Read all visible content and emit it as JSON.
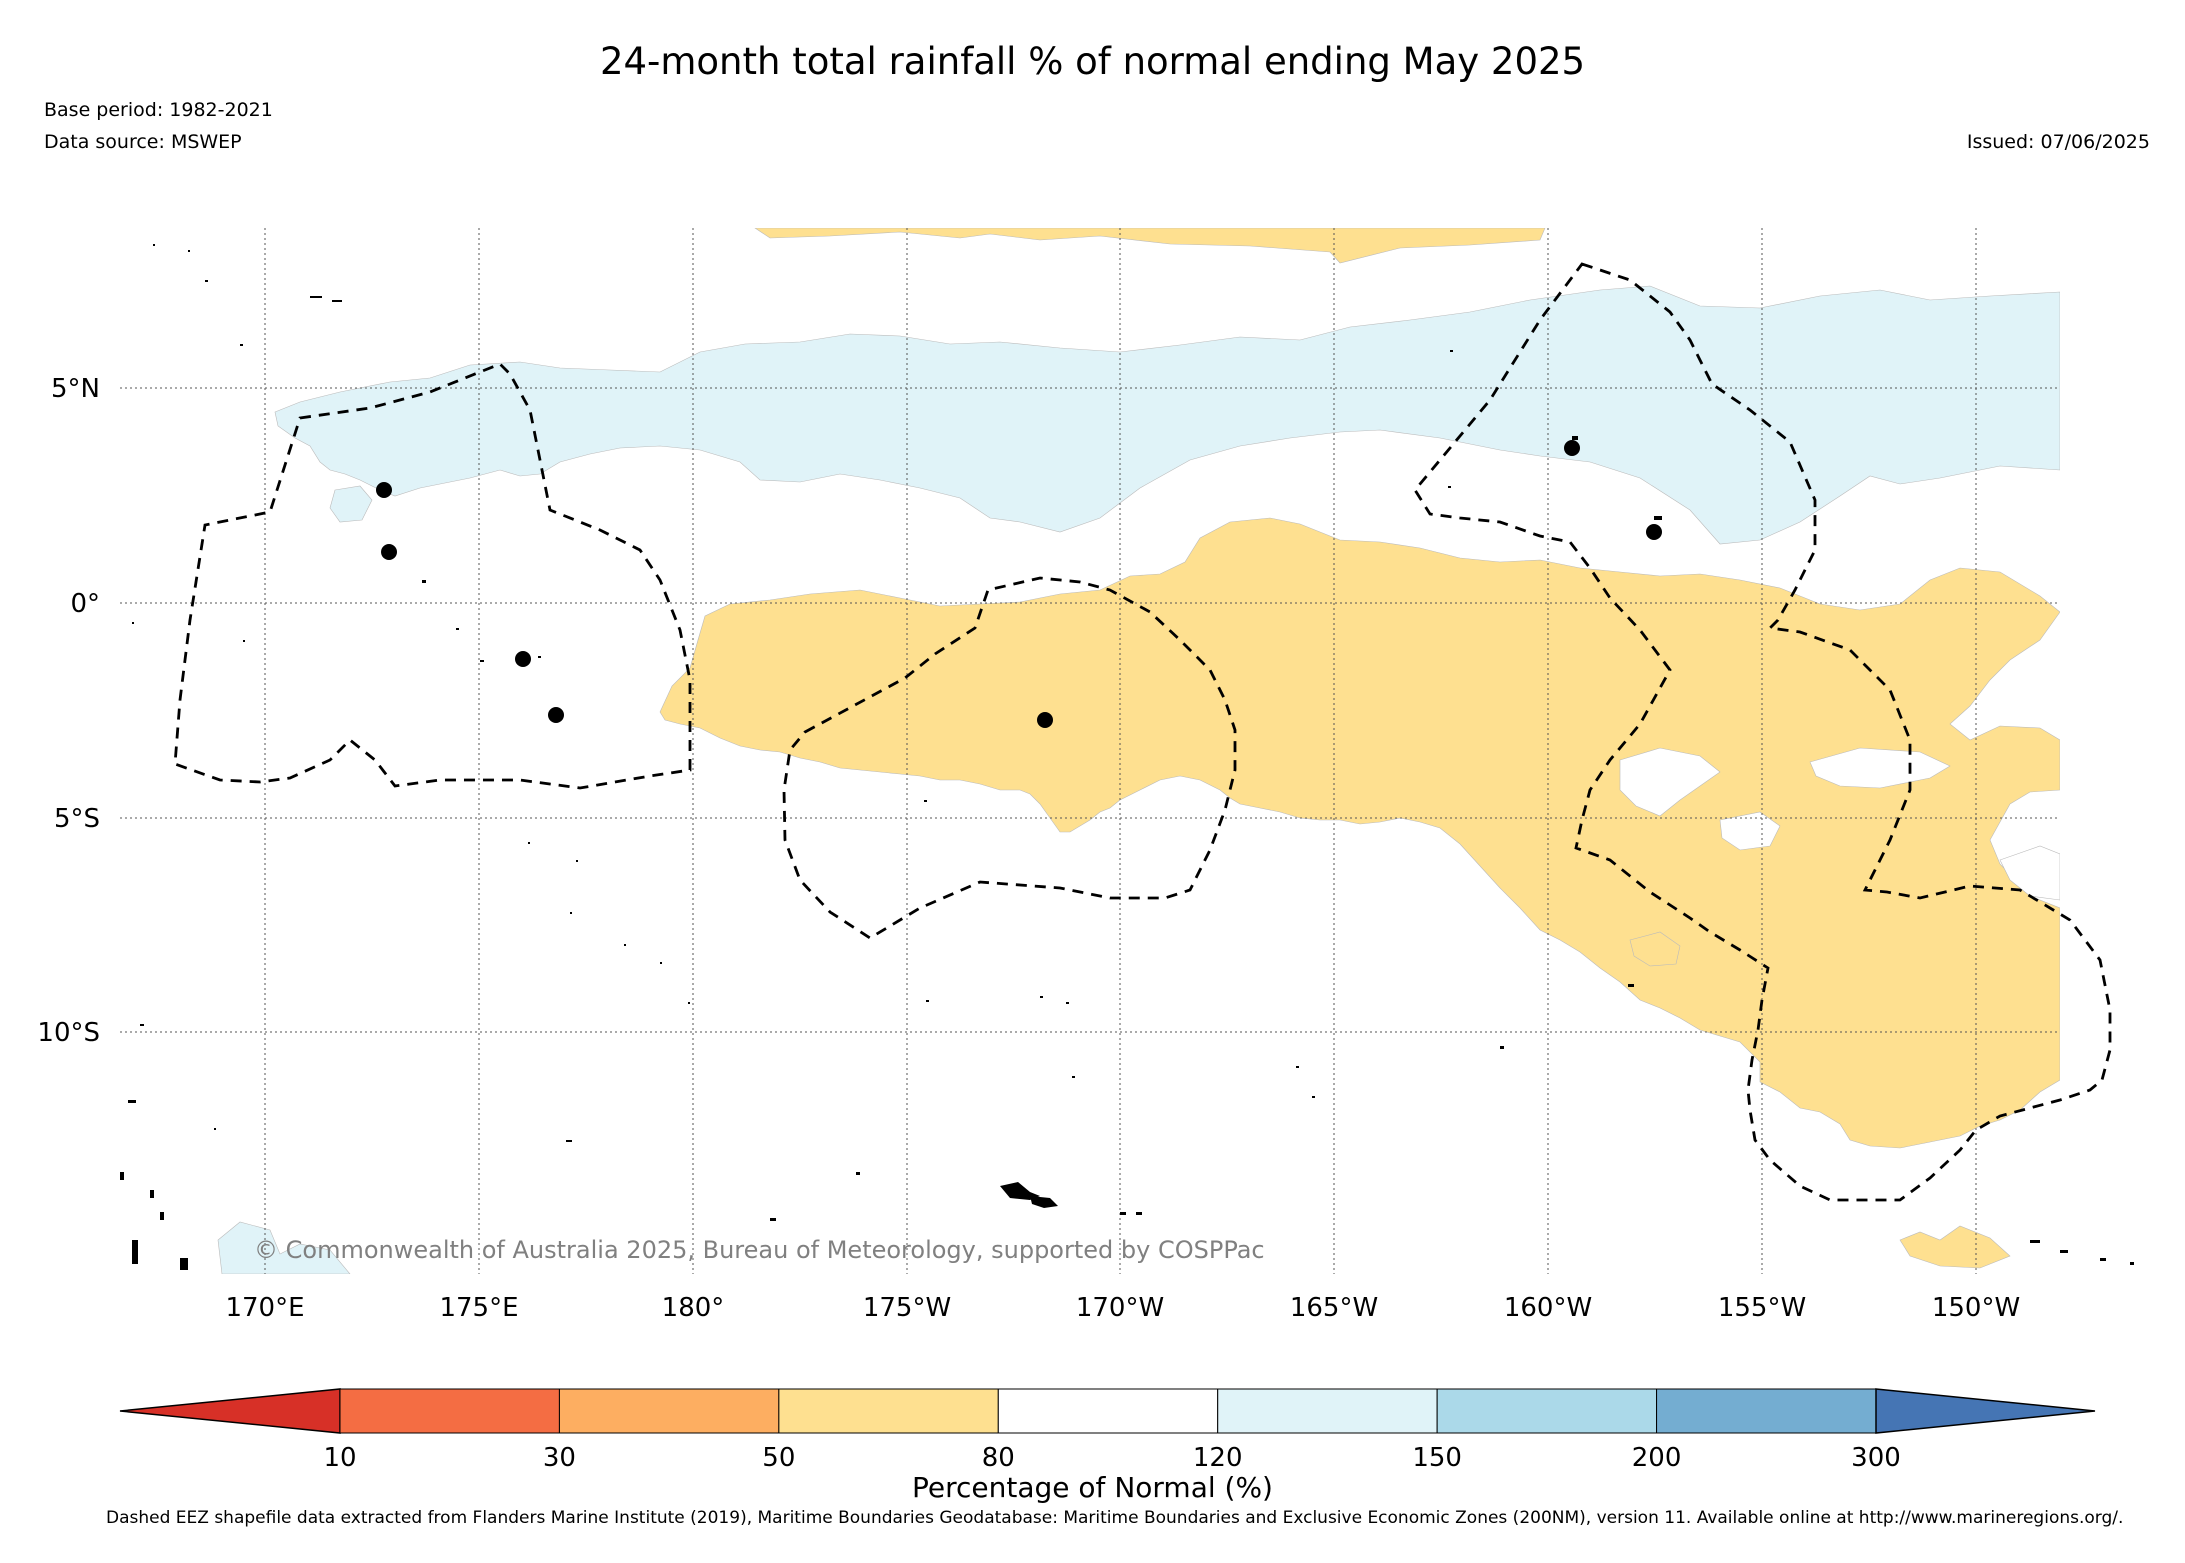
{
  "title": "24-month total rainfall % of normal ending May 2025",
  "base_period": "Base period: 1982-2021",
  "data_source": "Data source: MSWEP",
  "issued": "Issued: 07/06/2025",
  "copyright": "© Commonwealth of Australia 2025, Bureau of Meteorology, supported by COSPPac",
  "map": {
    "lat_ticks": [
      "5°N",
      "0°",
      "5°S",
      "10°S"
    ],
    "lon_ticks": [
      "170°E",
      "175°E",
      "180°",
      "175°W",
      "170°W",
      "165°W",
      "160°W",
      "155°W",
      "150°W"
    ]
  },
  "colorbar": {
    "label": "Percentage of Normal (%)",
    "ticks": [
      "10",
      "30",
      "50",
      "80",
      "120",
      "150",
      "200",
      "300"
    ],
    "colors": [
      "#d73027",
      "#f46d43",
      "#fdae61",
      "#fee090",
      "#ffffff",
      "#e0f3f8",
      "#abd9e9",
      "#74add1",
      "#4575b4"
    ]
  },
  "footnote": "Dashed EEZ shapefile data extracted from Flanders Marine Institute (2019), Maritime Boundaries Geodatabase: Maritime Boundaries and Exclusive Economic Zones (200NM), version 11. Available online at http://www.marineregions.org/."
}
